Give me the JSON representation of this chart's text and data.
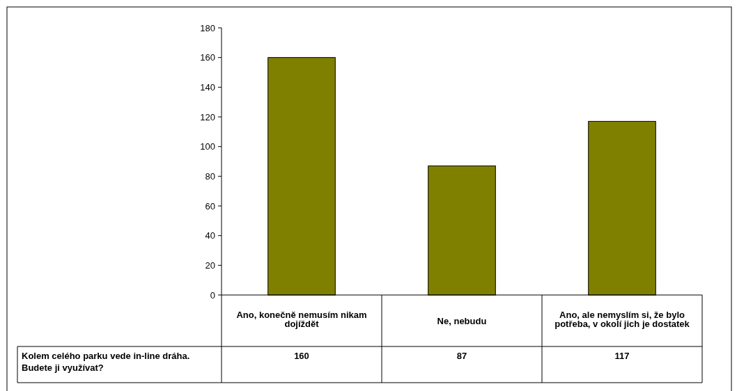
{
  "chart_data": {
    "type": "bar",
    "categories": [
      "Ano, konečně nemusím nikam dojíždět",
      "Ne, nebudu",
      "Ano, ale nemyslím si, že bylo potřeba, v okolí jich je dostatek"
    ],
    "series": [
      {
        "name": "Kolem celého parku vede in-line dráha. Budete ji využívat?",
        "color": "#808000",
        "values": [
          160,
          87,
          117
        ]
      }
    ],
    "ylim": [
      0,
      180
    ],
    "yticks": [
      0,
      20,
      40,
      60,
      80,
      100,
      120,
      140,
      160,
      180
    ],
    "grid": false,
    "data_labels": true
  }
}
